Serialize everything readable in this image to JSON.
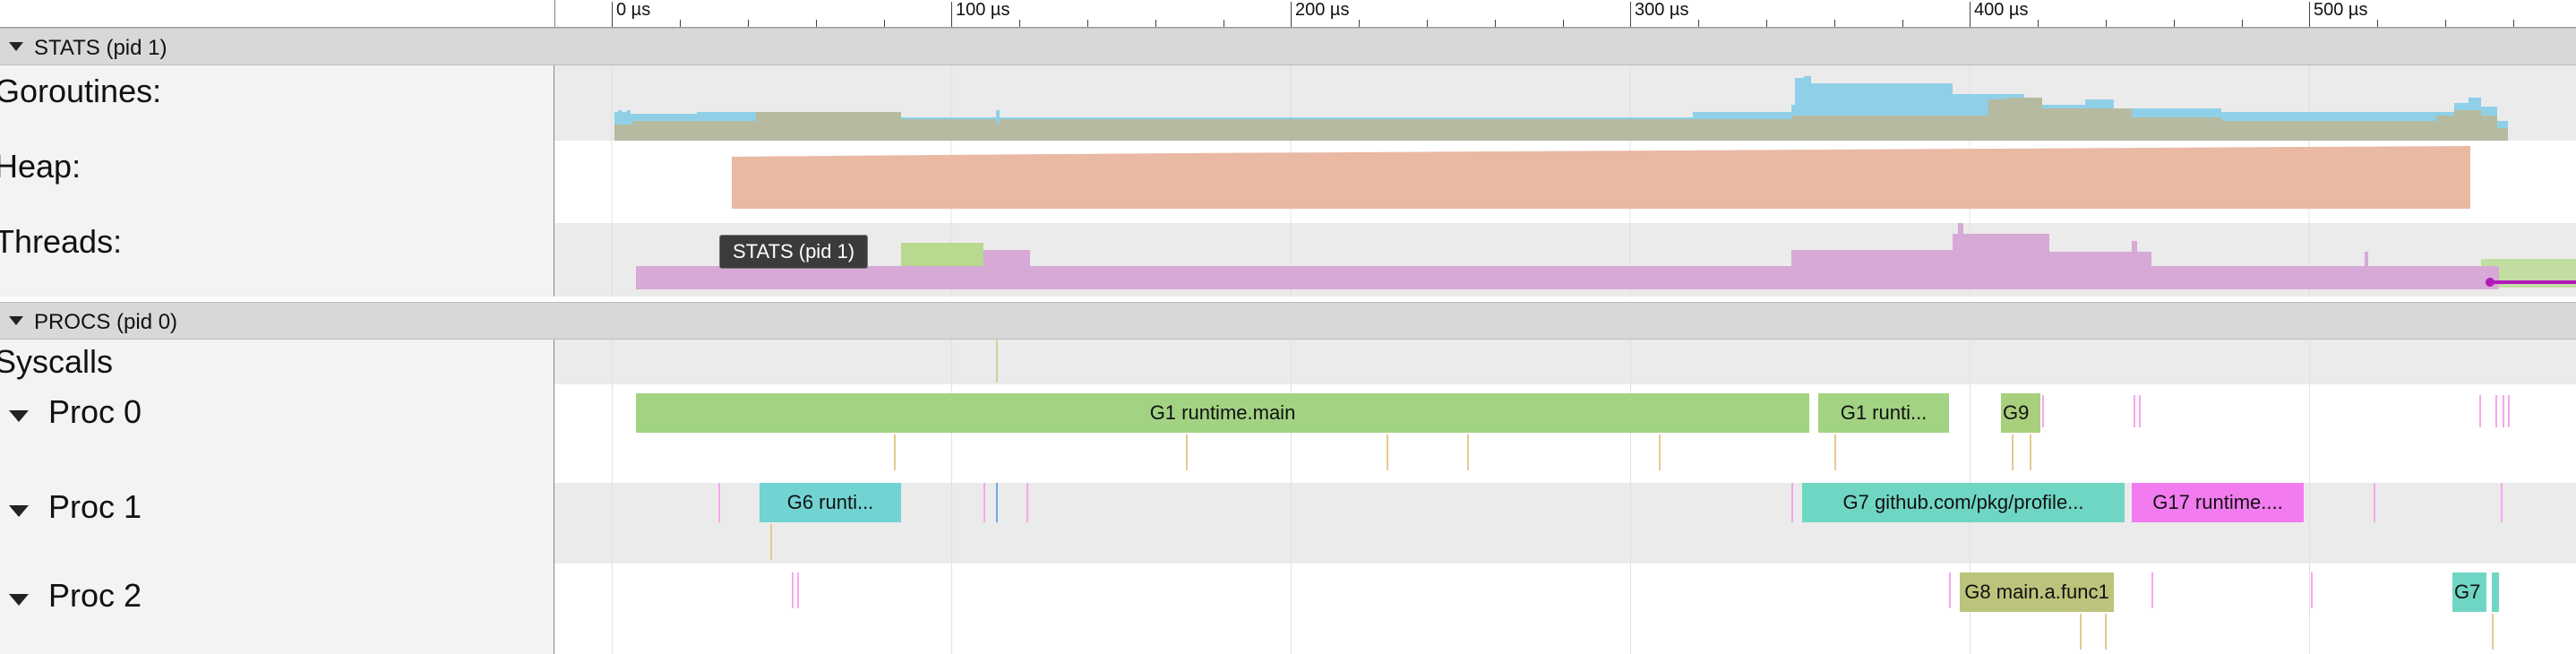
{
  "ruler": {
    "ticks": [
      "0 µs",
      "100 µs",
      "200 µs",
      "300 µs",
      "400 µs",
      "500 µs"
    ]
  },
  "groups": {
    "stats": "STATS (pid 1)",
    "procs": "PROCS (pid 0)"
  },
  "counters": {
    "goroutines": "Goroutines:",
    "heap": "Heap:",
    "threads": "Threads:"
  },
  "tracks": {
    "syscalls": "Syscalls",
    "proc0": "Proc 0",
    "proc1": "Proc 1",
    "proc2": "Proc 2"
  },
  "slices": {
    "proc0": [
      "G1 runtime.main",
      "G1 runti...",
      "G9"
    ],
    "proc1": [
      "G6 runti...",
      "G7 github.com/pkg/profile...",
      "G17 runtime...."
    ],
    "proc2": [
      "G8 main.a.func1",
      "G7"
    ]
  },
  "tooltip": "STATS (pid 1)",
  "colors": {
    "goroutines_runnable": "#8fd0e8",
    "goroutines_running": "#b5baa0",
    "heap": "#e9b9a4",
    "threads_syscall": "#b8d98f",
    "threads_running": "#d6a9d6",
    "g1": "#a2d383",
    "g9": "#a8cf7c",
    "g6": "#72d3d3",
    "g7": "#70d6c4",
    "g17": "#f27cef",
    "g8": "#bcc37b"
  }
}
